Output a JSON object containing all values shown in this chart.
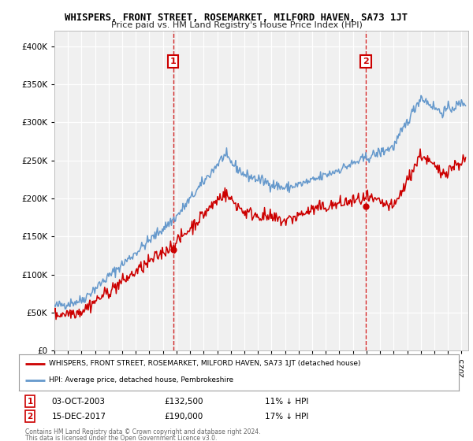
{
  "title": "WHISPERS, FRONT STREET, ROSEMARKET, MILFORD HAVEN, SA73 1JT",
  "subtitle": "Price paid vs. HM Land Registry's House Price Index (HPI)",
  "ylabel_ticks": [
    0,
    50000,
    100000,
    150000,
    200000,
    250000,
    300000,
    350000,
    400000
  ],
  "ylim": [
    0,
    420000
  ],
  "xlim_start": 1995.0,
  "xlim_end": 2025.5,
  "x_tick_years": [
    1995,
    1996,
    1997,
    1998,
    1999,
    2000,
    2001,
    2002,
    2003,
    2004,
    2005,
    2006,
    2007,
    2008,
    2009,
    2010,
    2011,
    2012,
    2013,
    2014,
    2015,
    2016,
    2017,
    2018,
    2019,
    2020,
    2021,
    2022,
    2023,
    2024,
    2025
  ],
  "sale1": {
    "year": 2003.75,
    "price": 132500,
    "label": "1"
  },
  "sale2": {
    "year": 2017.95,
    "price": 190000,
    "label": "2"
  },
  "legend_red": "WHISPERS, FRONT STREET, ROSEMARKET, MILFORD HAVEN, SA73 1JT (detached house)",
  "legend_blue": "HPI: Average price, detached house, Pembrokeshire",
  "footnote1": "Contains HM Land Registry data © Crown copyright and database right 2024.",
  "footnote2": "This data is licensed under the Open Government Licence v3.0.",
  "red_color": "#cc0000",
  "blue_color": "#6699cc",
  "background_plot": "#f0f0f0",
  "background_fig": "#ffffff",
  "grid_color": "#ffffff"
}
